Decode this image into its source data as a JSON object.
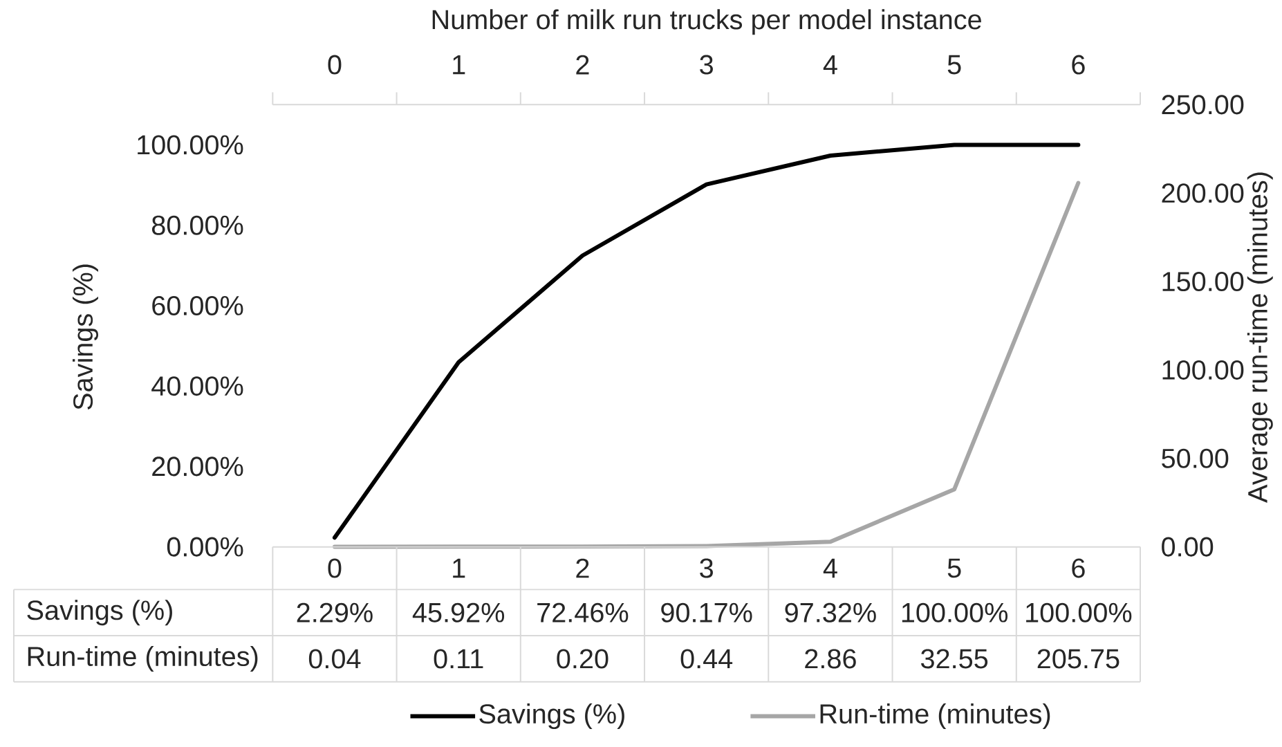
{
  "chart_data": {
    "type": "line",
    "xlabel": "Number of milk run trucks per model instance",
    "ylabel": "Savings (%)",
    "y2label": "Average run-time (minutes)",
    "categories": [
      "0",
      "1",
      "2",
      "3",
      "4",
      "5",
      "6"
    ],
    "series": [
      {
        "name": "Savings (%)",
        "color": "#000000",
        "values": [
          2.29,
          45.92,
          72.46,
          90.17,
          97.32,
          100.0,
          100.0
        ],
        "value_labels": [
          "2.29%",
          "45.92%",
          "72.46%",
          "90.17%",
          "97.32%",
          "100.00%",
          "100.00%"
        ]
      },
      {
        "name": "Run-time (minutes)",
        "color": "#a6a6a6",
        "axis": "y2",
        "values": [
          0.04,
          0.11,
          0.2,
          0.44,
          2.86,
          32.55,
          205.75
        ],
        "value_labels": [
          "0.04",
          "0.11",
          "0.20",
          "0.44",
          "2.86",
          "32.55",
          "205.75"
        ]
      }
    ],
    "ylim": [
      0,
      110
    ],
    "yticks": [
      {
        "value": 0,
        "label": "0.00%"
      },
      {
        "value": 20,
        "label": "20.00%"
      },
      {
        "value": 40,
        "label": "40.00%"
      },
      {
        "value": 60,
        "label": "60.00%"
      },
      {
        "value": 80,
        "label": "80.00%"
      },
      {
        "value": 100,
        "label": "100.00%"
      }
    ],
    "y2lim": [
      0,
      250
    ],
    "y2ticks": [
      {
        "value": 0,
        "label": "0.00"
      },
      {
        "value": 50,
        "label": "50.00"
      },
      {
        "value": 100,
        "label": "100.00"
      },
      {
        "value": 150,
        "label": "150.00"
      },
      {
        "value": 200,
        "label": "200.00"
      },
      {
        "value": 250,
        "label": "250.00"
      }
    ],
    "legend": "bottom",
    "marker": "none",
    "line_style": "solid"
  }
}
